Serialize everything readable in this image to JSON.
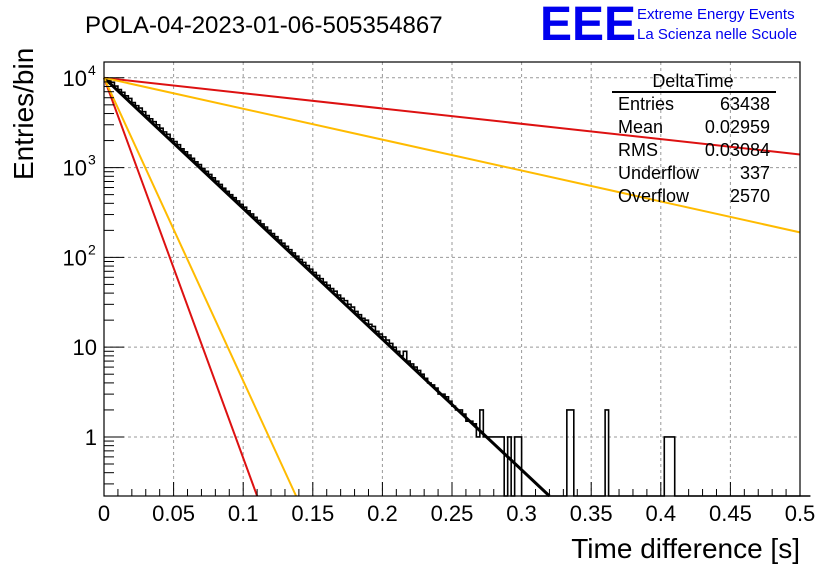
{
  "chart_data": {
    "type": "line",
    "title": "POLA-04-2023-01-06-505354867",
    "xlabel": "Time difference [s]",
    "ylabel": "Entries/bin",
    "xlim": [
      0,
      0.5
    ],
    "ylim": [
      0.22,
      15000
    ],
    "y_scale": "log",
    "grid": true,
    "x_ticks": [
      "0",
      "0.05",
      "0.1",
      "0.15",
      "0.2",
      "0.25",
      "0.3",
      "0.35",
      "0.4",
      "0.45",
      "0.5"
    ],
    "y_ticks": [
      {
        "value": 1,
        "base": "1",
        "exp": ""
      },
      {
        "value": 10,
        "base": "10",
        "exp": ""
      },
      {
        "value": 100,
        "base": "10",
        "exp": "2"
      },
      {
        "value": 1000,
        "base": "10",
        "exp": "3"
      },
      {
        "value": 10000,
        "base": "10",
        "exp": "4"
      }
    ],
    "logo": {
      "letters": "EEE",
      "line1": "Extreme Energy Events",
      "line2": "La Scienza nelle Scuole",
      "color": "#0000ee"
    },
    "stats_box": {
      "title": "DeltaTime",
      "rows": [
        {
          "label": "Entries",
          "value": "63438"
        },
        {
          "label": "Mean",
          "value": "0.02959"
        },
        {
          "label": "RMS",
          "value": "0.03084"
        },
        {
          "label": "Underflow",
          "value": "337"
        },
        {
          "label": "Overflow",
          "value": "2570"
        }
      ]
    },
    "series": [
      {
        "type": "histogram",
        "color": "#000000",
        "bin_width": 0.0025,
        "x_start": 0,
        "values": [
          10000,
          9300,
          8900,
          8100,
          7400,
          6900,
          6300,
          5900,
          5300,
          4900,
          4600,
          4200,
          3800,
          3500,
          3250,
          3000,
          2750,
          2500,
          2350,
          2100,
          1950,
          1800,
          1620,
          1500,
          1380,
          1270,
          1160,
          1080,
          980,
          910,
          840,
          770,
          705,
          650,
          590,
          545,
          500,
          462,
          425,
          390,
          362,
          330,
          305,
          280,
          258,
          236,
          218,
          200,
          184,
          170,
          156,
          144,
          133,
          122,
          112,
          103,
          95,
          88,
          81,
          74,
          68,
          63,
          58,
          53,
          49,
          45,
          42,
          38,
          35,
          33,
          30,
          28,
          25,
          23,
          21,
          20,
          18,
          17,
          15,
          14,
          13,
          12,
          11,
          10,
          9,
          8,
          9,
          7,
          6.5,
          6,
          5.5,
          5,
          4.5,
          4,
          3.8,
          3.5,
          3,
          3,
          2.8,
          2.5,
          2.2,
          2,
          2,
          1.8,
          1.5,
          1.5,
          1.4,
          1,
          2,
          1,
          1,
          1,
          1,
          1,
          1,
          0,
          1,
          0,
          1,
          1,
          0,
          0,
          0,
          0,
          0,
          0,
          0,
          0,
          0,
          0,
          0,
          0,
          0,
          2,
          2,
          0,
          0,
          0,
          0,
          0,
          0,
          0,
          0,
          0,
          2,
          0,
          0,
          0,
          0,
          0,
          0,
          0,
          0,
          0,
          0,
          0,
          0,
          0,
          0,
          0,
          0,
          1,
          1,
          1,
          0,
          0,
          0,
          0,
          0,
          0,
          0,
          0,
          0,
          0,
          0,
          0,
          0,
          0,
          0,
          0,
          0,
          0,
          0,
          0,
          0,
          0,
          0,
          0,
          0,
          0,
          0,
          0,
          0,
          0,
          0,
          0,
          0,
          0,
          0,
          0,
          0,
          0,
          0
        ]
      },
      {
        "type": "fit",
        "color": "#000000",
        "x": [
          0,
          0.32
        ],
        "y": [
          10000,
          0.22
        ],
        "width": 3
      },
      {
        "type": "fit",
        "color": "#dd1111",
        "x": [
          0,
          0.11
        ],
        "y": [
          10000,
          0.22
        ],
        "width": 2
      },
      {
        "type": "fit",
        "color": "#ffbb00",
        "x": [
          0,
          0.138
        ],
        "y": [
          10000,
          0.22
        ],
        "width": 2
      },
      {
        "type": "fit",
        "color": "#dd1111",
        "x": [
          0,
          0.5
        ],
        "y": [
          10000,
          1400
        ],
        "width": 2
      },
      {
        "type": "fit",
        "color": "#ffbb00",
        "x": [
          0,
          0.5
        ],
        "y": [
          10000,
          190
        ],
        "width": 2
      }
    ]
  }
}
